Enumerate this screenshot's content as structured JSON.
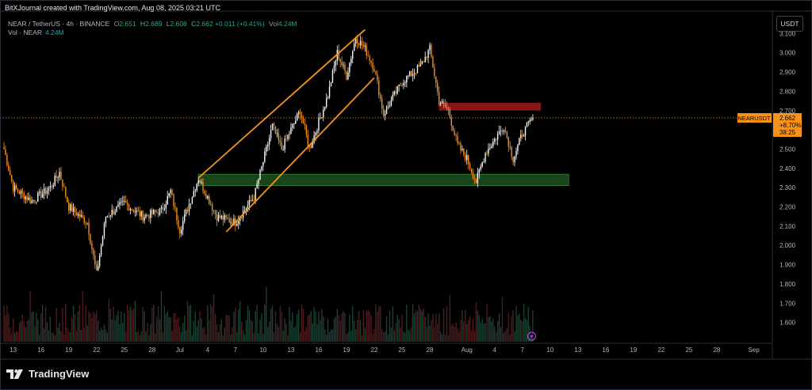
{
  "header": {
    "creator_line": "BitXJournal created with TradingView.com, Aug 08, 2025 03:21 UTC",
    "symbol_line": "NEAR / TetherUS · 4h · BINANCE",
    "open_label": "O",
    "open": "2.651",
    "high_label": "H",
    "high": "2.689",
    "low_label": "L",
    "low": "2.608",
    "close_label": "C",
    "close": "2.662",
    "change": "+0.011 (+0.41%)",
    "vol_label": "Vol",
    "vol": "4.24M",
    "vol_series_label": "Vol · NEAR",
    "vol_series_value": "4.24M"
  },
  "currency": "USDT",
  "price_tag": {
    "symbol": "NEARUSDT",
    "price": "2.662",
    "change": "+8.70%",
    "countdown": "38:25"
  },
  "brand": {
    "name": "TradingView"
  },
  "colors": {
    "up": "#ffffff",
    "down": "#f7931a",
    "channel": "#f7931a",
    "support_zone": "#2e7d32",
    "resistance_zone": "#b71c1c",
    "price_line": "#f7931a",
    "volume_up": "#1e4d3e",
    "volume_down": "#5b2225"
  },
  "chart_data": {
    "type": "candlestick",
    "interval": "4h",
    "x_axis_labels": [
      "13",
      "16",
      "19",
      "22",
      "25",
      "28",
      "Jul",
      "4",
      "7",
      "10",
      "13",
      "16",
      "19",
      "22",
      "25",
      "28",
      "Aug",
      "4",
      "7",
      "10",
      "13",
      "16",
      "19",
      "22",
      "25",
      "28",
      "Sep"
    ],
    "y_axis_labels": [
      "1.600",
      "1.700",
      "1.800",
      "1.900",
      "2.000",
      "2.100",
      "2.200",
      "2.300",
      "2.400",
      "2.500",
      "2.600",
      "2.700",
      "2.800",
      "2.900",
      "3.000",
      "3.100"
    ],
    "ylim": [
      1.5,
      3.2
    ],
    "price_path": [
      {
        "date": "Jun 12",
        "close": 2.5
      },
      {
        "date": "Jun 13",
        "close": 2.3
      },
      {
        "date": "Jun 15",
        "close": 2.23
      },
      {
        "date": "Jun 17",
        "close": 2.3
      },
      {
        "date": "Jun 18",
        "close": 2.38
      },
      {
        "date": "Jun 19",
        "close": 2.2
      },
      {
        "date": "Jun 21",
        "close": 2.12
      },
      {
        "date": "Jun 22",
        "close": 1.85
      },
      {
        "date": "Jun 23",
        "close": 2.15
      },
      {
        "date": "Jun 25",
        "close": 2.22
      },
      {
        "date": "Jun 27",
        "close": 2.15
      },
      {
        "date": "Jun 29",
        "close": 2.18
      },
      {
        "date": "Jun 30",
        "close": 2.28
      },
      {
        "date": "Jul 1",
        "close": 2.08
      },
      {
        "date": "Jul 3",
        "close": 2.35
      },
      {
        "date": "Jul 5",
        "close": 2.15
      },
      {
        "date": "Jul 7",
        "close": 2.12
      },
      {
        "date": "Jul 9",
        "close": 2.25
      },
      {
        "date": "Jul 11",
        "close": 2.62
      },
      {
        "date": "Jul 12",
        "close": 2.5
      },
      {
        "date": "Jul 14",
        "close": 2.7
      },
      {
        "date": "Jul 15",
        "close": 2.5
      },
      {
        "date": "Jul 17",
        "close": 2.78
      },
      {
        "date": "Jul 18",
        "close": 3.0
      },
      {
        "date": "Jul 19",
        "close": 2.88
      },
      {
        "date": "Jul 20",
        "close": 3.08
      },
      {
        "date": "Jul 21",
        "close": 3.02
      },
      {
        "date": "Jul 22",
        "close": 2.92
      },
      {
        "date": "Jul 23",
        "close": 2.68
      },
      {
        "date": "Jul 25",
        "close": 2.85
      },
      {
        "date": "Jul 27",
        "close": 2.93
      },
      {
        "date": "Jul 28",
        "close": 3.02
      },
      {
        "date": "Jul 29",
        "close": 2.75
      },
      {
        "date": "Jul 30",
        "close": 2.7
      },
      {
        "date": "Jul 31",
        "close": 2.52
      },
      {
        "date": "Aug 1",
        "close": 2.45
      },
      {
        "date": "Aug 2",
        "close": 2.33
      },
      {
        "date": "Aug 3",
        "close": 2.48
      },
      {
        "date": "Aug 4",
        "close": 2.55
      },
      {
        "date": "Aug 5",
        "close": 2.62
      },
      {
        "date": "Aug 6",
        "close": 2.45
      },
      {
        "date": "Aug 7",
        "close": 2.58
      },
      {
        "date": "Aug 8",
        "close": 2.662
      }
    ],
    "current_price": 2.662,
    "support_zone": {
      "from": "Jul 3",
      "to": "Aug 12",
      "low": 2.31,
      "high": 2.37
    },
    "resistance_zone": {
      "from": "Jul 29",
      "to": "Aug 9",
      "low": 2.7,
      "high": 2.74
    },
    "channel_upper": [
      {
        "date": "Jul 3",
        "price": 2.35
      },
      {
        "date": "Jul 21",
        "price": 3.12
      }
    ],
    "channel_lower": [
      {
        "date": "Jul 6",
        "price": 2.07
      },
      {
        "date": "Jul 22",
        "price": 2.87
      }
    ]
  }
}
